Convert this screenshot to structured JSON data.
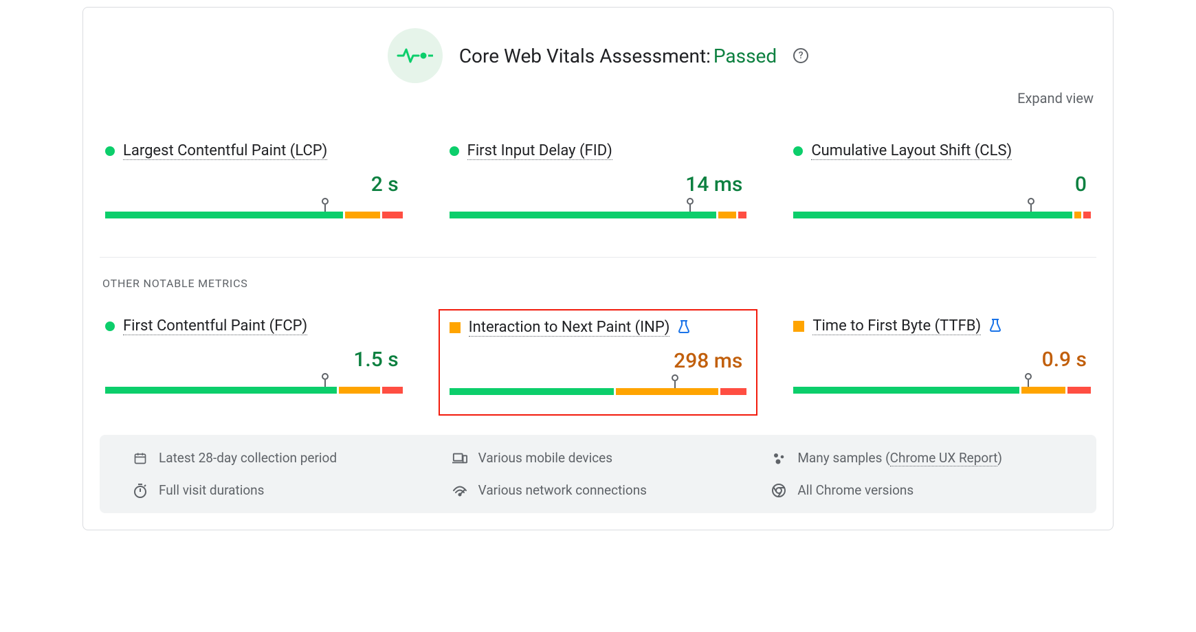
{
  "colors": {
    "good": "#0cce6b",
    "avg": "#ffa400",
    "poor": "#ff4e42",
    "good_text": "#0d8040",
    "avg_text": "#c15f0c",
    "icon_bg": "#e6f4ea",
    "highlight_border": "#f21b0c",
    "link_blue": "#1a73e8",
    "muted": "#5f6368"
  },
  "header": {
    "title": "Core Web Vitals Assessment:",
    "status": "Passed",
    "status_color": "#0d8040",
    "expand": "Expand view"
  },
  "section_label": "OTHER NOTABLE METRICS",
  "core_metrics": [
    {
      "name": "Largest Contentful Paint (LCP)",
      "value": "2 s",
      "status": "good",
      "status_shape": "dot",
      "value_color": "#0d8040",
      "segments": [
        {
          "color": "#0cce6b",
          "pct": 81
        },
        {
          "color": "#ffa400",
          "pct": 12
        },
        {
          "color": "#ff4e42",
          "pct": 7
        }
      ],
      "marker_pct": 74,
      "flask": false,
      "highlight": false
    },
    {
      "name": "First Input Delay (FID)",
      "value": "14 ms",
      "status": "good",
      "status_shape": "dot",
      "value_color": "#0d8040",
      "segments": [
        {
          "color": "#0cce6b",
          "pct": 91
        },
        {
          "color": "#ffa400",
          "pct": 6
        },
        {
          "color": "#ff4e42",
          "pct": 3
        }
      ],
      "marker_pct": 81,
      "flask": false,
      "highlight": false
    },
    {
      "name": "Cumulative Layout Shift (CLS)",
      "value": "0",
      "status": "good",
      "status_shape": "dot",
      "value_color": "#0d8040",
      "segments": [
        {
          "color": "#0cce6b",
          "pct": 95
        },
        {
          "color": "#ffa400",
          "pct": 2.5
        },
        {
          "color": "#ff4e42",
          "pct": 2.5
        }
      ],
      "marker_pct": 80,
      "flask": false,
      "highlight": false
    }
  ],
  "other_metrics": [
    {
      "name": "First Contentful Paint (FCP)",
      "value": "1.5 s",
      "status": "good",
      "status_shape": "dot",
      "value_color": "#0d8040",
      "segments": [
        {
          "color": "#0cce6b",
          "pct": 79
        },
        {
          "color": "#ffa400",
          "pct": 14
        },
        {
          "color": "#ff4e42",
          "pct": 7
        }
      ],
      "marker_pct": 74,
      "flask": false,
      "highlight": false
    },
    {
      "name": "Interaction to Next Paint (INP)",
      "value": "298 ms",
      "status": "avg",
      "status_shape": "square",
      "value_color": "#c15f0c",
      "segments": [
        {
          "color": "#0cce6b",
          "pct": 56
        },
        {
          "color": "#ffa400",
          "pct": 35
        },
        {
          "color": "#ff4e42",
          "pct": 9
        }
      ],
      "marker_pct": 76,
      "flask": true,
      "highlight": true
    },
    {
      "name": "Time to First Byte (TTFB)",
      "value": "0.9 s",
      "status": "avg",
      "status_shape": "square",
      "value_color": "#c15f0c",
      "segments": [
        {
          "color": "#0cce6b",
          "pct": 77
        },
        {
          "color": "#ffa400",
          "pct": 15
        },
        {
          "color": "#ff4e42",
          "pct": 8
        }
      ],
      "marker_pct": 79,
      "flask": true,
      "highlight": false
    }
  ],
  "footer": {
    "period": "Latest 28-day collection period",
    "devices": "Various mobile devices",
    "samples_prefix": "Many samples (",
    "samples_link": "Chrome UX Report",
    "samples_suffix": ")",
    "durations": "Full visit durations",
    "network": "Various network connections",
    "versions": "All Chrome versions"
  }
}
